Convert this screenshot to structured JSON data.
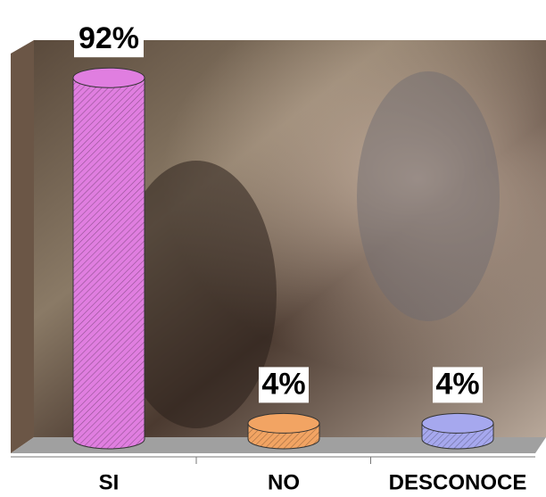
{
  "chart_data": {
    "type": "bar3d-cylinder",
    "categories": [
      "SI",
      "NO",
      "DESCONOCE"
    ],
    "values": [
      92,
      4,
      4
    ],
    "value_labels": [
      "92%",
      "4%",
      "4%"
    ],
    "colors": [
      "#e07ee0",
      "#f2a463",
      "#a6a8ee"
    ]
  }
}
